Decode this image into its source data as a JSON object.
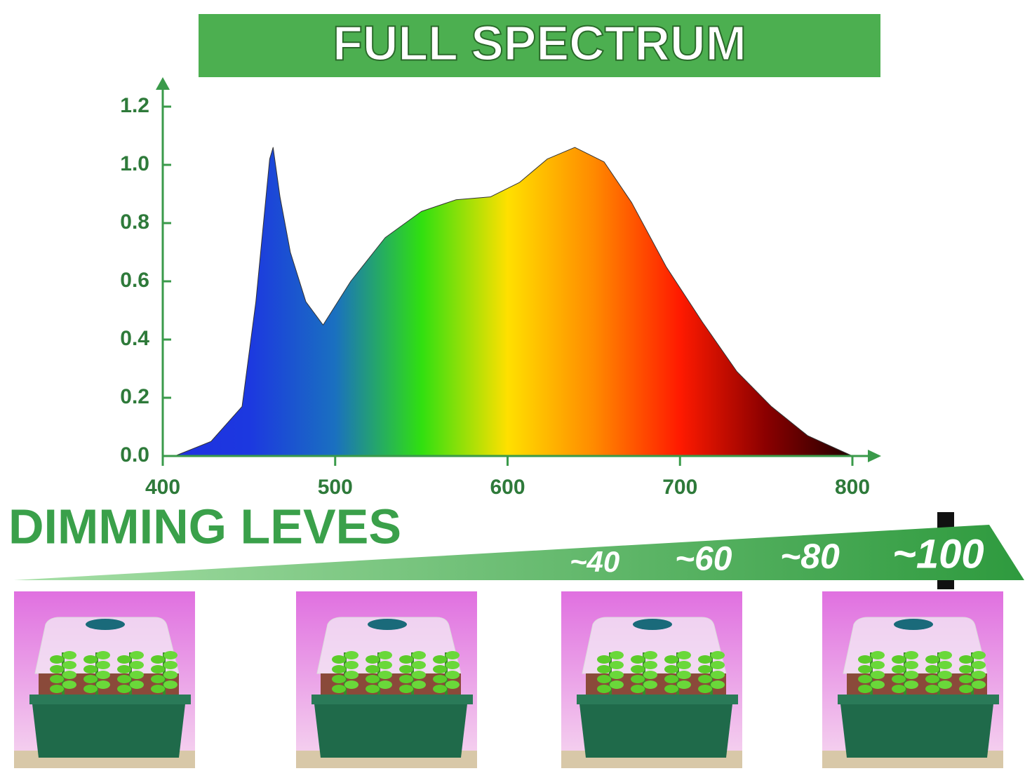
{
  "chart_data": {
    "type": "area",
    "title": "FULL SPECTRUM",
    "x": [
      407,
      428,
      446,
      454,
      462,
      464,
      468,
      474,
      483,
      493,
      509,
      529,
      550,
      570,
      590,
      607,
      623,
      639,
      656,
      672,
      692,
      713,
      733,
      753,
      774,
      800
    ],
    "values": [
      0.0,
      0.05,
      0.17,
      0.53,
      1.02,
      1.06,
      0.89,
      0.7,
      0.53,
      0.45,
      0.6,
      0.75,
      0.84,
      0.88,
      0.89,
      0.94,
      1.02,
      1.06,
      1.01,
      0.87,
      0.65,
      0.46,
      0.29,
      0.17,
      0.07,
      0.0
    ],
    "xlim": [
      400,
      800
    ],
    "xticks": [
      400,
      500,
      600,
      700,
      800
    ],
    "ylim": [
      0,
      1.2
    ],
    "yticks": [
      {
        "value": 0,
        "label": "0.0"
      },
      0.2,
      0.4,
      0.6,
      0.8,
      {
        "value": 1,
        "label": "1.0"
      },
      1.2
    ],
    "colors": [
      "#2030e0",
      "#1c38e0",
      "#1a70c0",
      "#30e010",
      "#ffe000",
      "#ff8a00",
      "#ff1a00",
      "#8a0000",
      "#200000"
    ],
    "axis_color": "#3a9a4a"
  },
  "dimming": {
    "title": "DIMMING LEVES",
    "levels": [
      "~40",
      "~60",
      "~80",
      "~100"
    ]
  }
}
